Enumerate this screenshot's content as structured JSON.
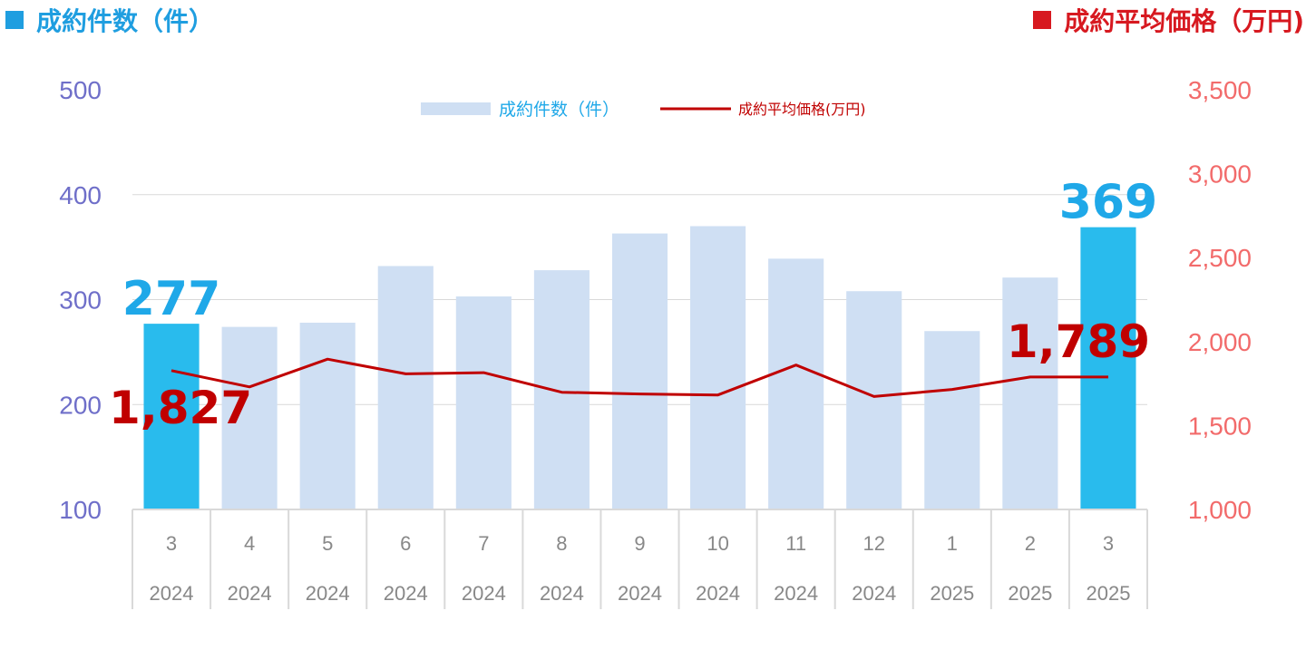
{
  "header": {
    "left_title": "成約件数（件）",
    "right_title": "成約平均価格（万円)"
  },
  "colors": {
    "bar_normal": "#cfdff3",
    "bar_highlight": "#29bbed",
    "line": "#c00000",
    "left_axis": "#6f6fc9",
    "right_axis": "#f26b6b",
    "highlight_count_label": "#1fa8e8",
    "price_label": "#c00000",
    "grid": "#d9d9d9"
  },
  "chart_data": {
    "type": "bar+line",
    "categories": [
      {
        "month": "3",
        "year": "2024"
      },
      {
        "month": "4",
        "year": "2024"
      },
      {
        "month": "5",
        "year": "2024"
      },
      {
        "month": "6",
        "year": "2024"
      },
      {
        "month": "7",
        "year": "2024"
      },
      {
        "month": "8",
        "year": "2024"
      },
      {
        "month": "9",
        "year": "2024"
      },
      {
        "month": "10",
        "year": "2024"
      },
      {
        "month": "11",
        "year": "2024"
      },
      {
        "month": "12",
        "year": "2024"
      },
      {
        "month": "1",
        "year": "2025"
      },
      {
        "month": "2",
        "year": "2025"
      },
      {
        "month": "3",
        "year": "2025"
      }
    ],
    "series": [
      {
        "name": "成約件数（件）",
        "type": "bar",
        "axis": "left",
        "values": [
          277,
          274,
          278,
          332,
          303,
          328,
          363,
          370,
          339,
          308,
          270,
          321,
          369
        ],
        "highlight_indices": [
          0,
          12
        ]
      },
      {
        "name": "成約平均価格(万円)",
        "type": "line",
        "axis": "right",
        "values": [
          1827,
          1730,
          1895,
          1808,
          1815,
          1698,
          1688,
          1682,
          1860,
          1673,
          1715,
          1789,
          1789
        ]
      }
    ],
    "left_axis": {
      "min": 100,
      "max": 500,
      "ticks": [
        "100",
        "200",
        "300",
        "400",
        "500"
      ]
    },
    "right_axis": {
      "min": 1000,
      "max": 3500,
      "ticks": [
        "1,000",
        "1,500",
        "2,000",
        "2,500",
        "3,000",
        "3,500"
      ]
    },
    "annotations": [
      {
        "series": 0,
        "index": 0,
        "text": "277"
      },
      {
        "series": 0,
        "index": 12,
        "text": "369"
      },
      {
        "series": 1,
        "index": 0,
        "text": "1,827"
      },
      {
        "series": 1,
        "index": 12,
        "text": "1,789"
      }
    ],
    "legend_position": "top-center",
    "grid": true
  }
}
